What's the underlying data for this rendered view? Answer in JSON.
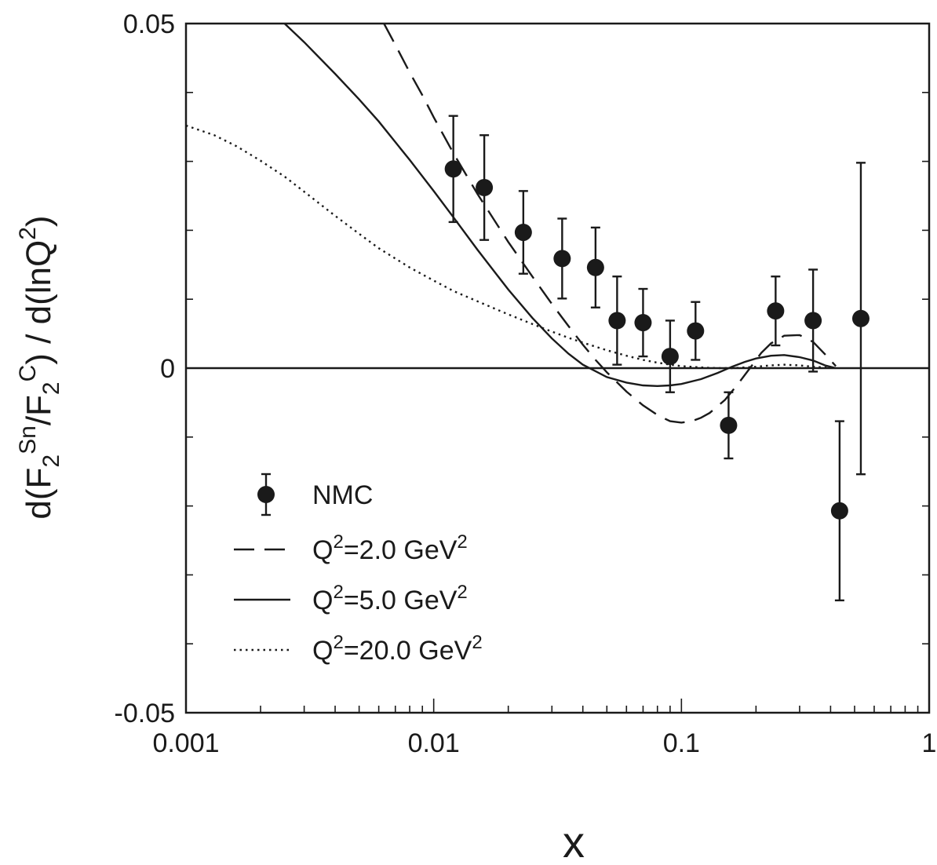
{
  "chart_data": {
    "type": "scatter",
    "title": "",
    "xlabel": "x",
    "ylabel": {
      "prefix": "d(F",
      "sub1": "2",
      "sup1": "Sn",
      "mid": "/F",
      "sub2": "2",
      "sup2": "C",
      "mid2": ") / d(lnQ",
      "sup3": "2",
      "suffix": ")"
    },
    "xscale": "log",
    "xlim": [
      0.001,
      1
    ],
    "ylim": [
      -0.05,
      0.05
    ],
    "x_ticks": [
      {
        "value": 0.001,
        "label": "0.001"
      },
      {
        "value": 0.01,
        "label": "0.01"
      },
      {
        "value": 0.1,
        "label": "0.1"
      },
      {
        "value": 1,
        "label": "1"
      }
    ],
    "y_ticks": [
      {
        "value": 0.05,
        "label": "0.05"
      },
      {
        "value": 0,
        "label": "0"
      },
      {
        "value": -0.05,
        "label": "-0.05"
      }
    ],
    "y_minor_step": 0.01,
    "zero_line": true,
    "grid": false,
    "legend_position": "lower-left",
    "series": [
      {
        "name": "NMC",
        "kind": "points_with_errors",
        "color": "#1a1a1a",
        "points": [
          {
            "x": 0.012,
            "y": 0.0289,
            "err": 0.0077
          },
          {
            "x": 0.016,
            "y": 0.0262,
            "err": 0.0076
          },
          {
            "x": 0.023,
            "y": 0.0197,
            "err": 0.006
          },
          {
            "x": 0.033,
            "y": 0.0159,
            "err": 0.0058
          },
          {
            "x": 0.045,
            "y": 0.0146,
            "err": 0.0058
          },
          {
            "x": 0.055,
            "y": 0.0069,
            "err": 0.0064
          },
          {
            "x": 0.07,
            "y": 0.0066,
            "err": 0.0049
          },
          {
            "x": 0.09,
            "y": 0.0017,
            "err": 0.0052
          },
          {
            "x": 0.114,
            "y": 0.0054,
            "err": 0.0042
          },
          {
            "x": 0.155,
            "y": -0.0083,
            "err": 0.0048
          },
          {
            "x": 0.24,
            "y": 0.0083,
            "err": 0.005
          },
          {
            "x": 0.34,
            "y": 0.0069,
            "err": 0.0074
          },
          {
            "x": 0.435,
            "y": -0.0207,
            "err": 0.013
          },
          {
            "x": 0.53,
            "y": 0.0072,
            "err": 0.0226
          }
        ]
      },
      {
        "name": "Q2=2.0 GeV2",
        "legend": {
          "pre": "Q",
          "sup1": "2",
          "mid": "=2.0 GeV",
          "sup2": "2"
        },
        "kind": "line",
        "dash": "dashed",
        "color": "#1a1a1a",
        "x": [
          0.0063,
          0.007,
          0.008,
          0.009,
          0.01,
          0.012,
          0.015,
          0.02,
          0.025,
          0.03,
          0.035,
          0.04,
          0.045,
          0.05,
          0.06,
          0.07,
          0.08,
          0.09,
          0.1,
          0.11,
          0.12,
          0.13,
          0.15,
          0.17,
          0.19,
          0.21,
          0.23,
          0.26,
          0.3,
          0.34,
          0.38,
          0.42
        ],
        "y": [
          0.05,
          0.0469,
          0.0429,
          0.0396,
          0.0364,
          0.0312,
          0.0253,
          0.0183,
          0.0133,
          0.0093,
          0.0061,
          0.0034,
          0.0012,
          -0.0006,
          -0.0034,
          -0.0054,
          -0.0068,
          -0.0077,
          -0.0079,
          -0.0077,
          -0.0072,
          -0.0065,
          -0.0046,
          -0.0022,
          0.0001,
          0.0022,
          0.0036,
          0.0047,
          0.0048,
          0.0038,
          0.002,
          0.0003
        ]
      },
      {
        "name": "Q2=5.0 GeV2",
        "legend": {
          "pre": "Q",
          "sup1": "2",
          "mid": "=5.0 GeV",
          "sup2": "2"
        },
        "kind": "line",
        "dash": "solid",
        "color": "#1a1a1a",
        "x": [
          0.0025,
          0.003,
          0.004,
          0.005,
          0.006,
          0.008,
          0.01,
          0.012,
          0.015,
          0.02,
          0.025,
          0.03,
          0.035,
          0.04,
          0.05,
          0.06,
          0.07,
          0.08,
          0.09,
          0.1,
          0.12,
          0.14,
          0.16,
          0.18,
          0.2,
          0.23,
          0.26,
          0.3,
          0.34,
          0.38,
          0.42
        ],
        "y": [
          0.05,
          0.0473,
          0.0427,
          0.039,
          0.0358,
          0.0302,
          0.0257,
          0.0219,
          0.0172,
          0.0114,
          0.0073,
          0.0043,
          0.0021,
          0.0005,
          -0.0013,
          -0.0021,
          -0.0025,
          -0.0026,
          -0.0025,
          -0.0023,
          -0.0016,
          -0.0007,
          0.0002,
          0.0009,
          0.0014,
          0.0018,
          0.0019,
          0.0016,
          0.0011,
          0.0004,
          0.0
        ]
      },
      {
        "name": "Q2=20.0 GeV2",
        "legend": {
          "pre": "Q",
          "sup1": "2",
          "mid": "=20.0 GeV",
          "sup2": "2"
        },
        "kind": "line",
        "dash": "dotted",
        "color": "#1a1a1a",
        "x": [
          0.001,
          0.0013,
          0.0016,
          0.002,
          0.0025,
          0.003,
          0.004,
          0.005,
          0.006,
          0.008,
          0.01,
          0.012,
          0.015,
          0.02,
          0.025,
          0.03,
          0.035,
          0.04,
          0.05,
          0.06,
          0.07,
          0.08,
          0.09,
          0.1,
          0.12,
          0.14,
          0.16,
          0.18,
          0.2,
          0.23,
          0.26,
          0.3,
          0.34,
          0.38,
          0.42
        ],
        "y": [
          0.0352,
          0.0338,
          0.0322,
          0.0301,
          0.0278,
          0.0256,
          0.0221,
          0.0195,
          0.0174,
          0.0146,
          0.0127,
          0.0112,
          0.0097,
          0.0078,
          0.0064,
          0.0053,
          0.0044,
          0.0037,
          0.0026,
          0.0018,
          0.0012,
          0.0008,
          0.0005,
          0.0003,
          0.0001,
          0.0,
          0.0,
          0.0001,
          0.0002,
          0.0004,
          0.0005,
          0.0004,
          0.0002,
          0.0001,
          0.0
        ]
      }
    ]
  }
}
